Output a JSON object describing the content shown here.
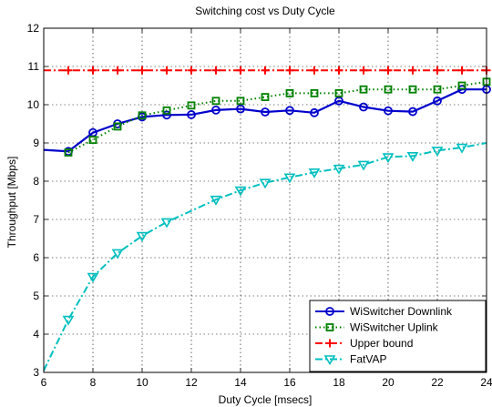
{
  "chart_data": {
    "type": "line",
    "title": "Switching cost vs Duty Cycle",
    "xlabel": "Duty Cycle [msecs]",
    "ylabel": "Throughput [Mbps]",
    "xlim": [
      6,
      24
    ],
    "ylim": [
      3,
      12
    ],
    "xticks": [
      6,
      8,
      10,
      12,
      14,
      16,
      18,
      20,
      22,
      24
    ],
    "yticks": [
      3,
      4,
      5,
      6,
      7,
      8,
      9,
      10,
      11,
      12
    ],
    "grid": true,
    "legend_position": "bottom-right",
    "series": [
      {
        "name": "WiSwitcher Downlink",
        "color": "#0000cc",
        "line_style": "solid",
        "marker": "circle",
        "line_x": [
          6,
          7,
          8,
          9,
          10,
          11,
          12,
          13,
          14,
          15,
          16,
          17,
          18,
          19,
          20,
          21,
          22,
          23,
          24
        ],
        "line_y": [
          8.82,
          8.78,
          9.27,
          9.5,
          9.68,
          9.73,
          9.74,
          9.86,
          9.89,
          9.81,
          9.85,
          9.79,
          10.1,
          9.94,
          9.84,
          9.82,
          10.1,
          10.4,
          10.4
        ],
        "marker_x": [
          7,
          8,
          9,
          10,
          11,
          12,
          13,
          14,
          15,
          16,
          17,
          18,
          19,
          20,
          21,
          22,
          23,
          24
        ],
        "marker_y": [
          8.78,
          9.27,
          9.5,
          9.68,
          9.73,
          9.74,
          9.86,
          9.89,
          9.81,
          9.85,
          9.79,
          10.1,
          9.94,
          9.84,
          9.82,
          10.1,
          10.4,
          10.4
        ]
      },
      {
        "name": "WiSwitcher Uplink",
        "color": "#008000",
        "line_style": "dotted",
        "marker": "square",
        "line_x": [
          7,
          8,
          9,
          10,
          11,
          12,
          13,
          14,
          15,
          16,
          17,
          18,
          19,
          20,
          21,
          22,
          23,
          24
        ],
        "line_y": [
          8.75,
          9.08,
          9.43,
          9.72,
          9.85,
          9.98,
          10.1,
          10.1,
          10.2,
          10.3,
          10.3,
          10.3,
          10.4,
          10.4,
          10.4,
          10.4,
          10.5,
          10.6
        ],
        "marker_x": [
          7,
          8,
          9,
          10,
          11,
          12,
          13,
          14,
          15,
          16,
          17,
          18,
          19,
          20,
          21,
          22,
          23,
          24
        ],
        "marker_y": [
          8.75,
          9.08,
          9.43,
          9.72,
          9.85,
          9.98,
          10.1,
          10.1,
          10.2,
          10.3,
          10.3,
          10.3,
          10.4,
          10.4,
          10.4,
          10.4,
          10.5,
          10.6
        ]
      },
      {
        "name": "Upper bound",
        "color": "#ff0000",
        "line_style": "dashdot",
        "marker": "plus",
        "line_x": [
          6,
          24
        ],
        "line_y": [
          10.9,
          10.9
        ],
        "marker_x": [
          7,
          8,
          9,
          10,
          11,
          12,
          13,
          14,
          15,
          16,
          17,
          18,
          19,
          20,
          21,
          22,
          23,
          24
        ],
        "marker_y": [
          10.9,
          10.9,
          10.9,
          10.9,
          10.9,
          10.9,
          10.9,
          10.9,
          10.9,
          10.9,
          10.9,
          10.9,
          10.9,
          10.9,
          10.9,
          10.9,
          10.9,
          10.9
        ]
      },
      {
        "name": "FatVAP",
        "color": "#00bfbf",
        "line_style": "dashdot",
        "marker": "triangle-down",
        "line_x": [
          6,
          7,
          8,
          9,
          10,
          11,
          13,
          14,
          15,
          16,
          17,
          18,
          19,
          20,
          21,
          22,
          23,
          24
        ],
        "line_y": [
          3.05,
          4.38,
          5.5,
          6.12,
          6.57,
          6.93,
          7.52,
          7.76,
          7.96,
          8.1,
          8.23,
          8.33,
          8.43,
          8.63,
          8.66,
          8.8,
          8.88,
          9.0
        ],
        "marker_x": [
          7,
          8,
          9,
          10,
          11,
          13,
          14,
          15,
          16,
          17,
          18,
          19,
          20,
          21,
          22,
          23
        ],
        "marker_y": [
          4.38,
          5.5,
          6.12,
          6.57,
          6.93,
          7.52,
          7.76,
          7.96,
          8.1,
          8.23,
          8.33,
          8.43,
          8.63,
          8.66,
          8.8,
          8.88
        ]
      }
    ]
  }
}
